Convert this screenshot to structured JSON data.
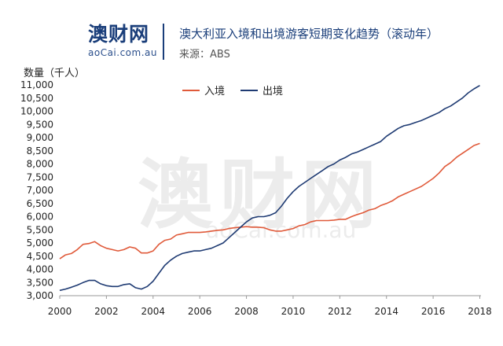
{
  "header": {
    "logo_main": "澳财网",
    "logo_domain": "aoCai.com.au",
    "title": "澳大利亚入境和出境游客短期变化趋势（滚动年）",
    "source": "来源：ABS"
  },
  "watermark": {
    "main": "澳财网",
    "domain": "aoCai.com.au"
  },
  "colors": {
    "arrivals": "#e05a3a",
    "departures": "#1f3b73",
    "brand": "#1a3e7a",
    "accent": "#e44a2e"
  },
  "chart_data": {
    "type": "line",
    "title": "澳大利亚入境和出境游客短期变化趋势（滚动年）",
    "xlabel": "",
    "ylabel": "数量（千人）",
    "xlim": [
      2000,
      2018.05
    ],
    "ylim": [
      3000,
      11000
    ],
    "x_ticks": [
      "2000",
      "2002",
      "2004",
      "2006",
      "2008",
      "2010",
      "2012",
      "2014",
      "2016",
      "2018"
    ],
    "y_ticks": [
      "3,000",
      "3,500",
      "4,000",
      "4,500",
      "5,000",
      "5,500",
      "6,000",
      "6,500",
      "7,000",
      "7,500",
      "8,000",
      "8,500",
      "9,000",
      "9,500",
      "10,000",
      "10,500",
      "11,000"
    ],
    "y_tick_values": [
      3000,
      3500,
      4000,
      4500,
      5000,
      5500,
      6000,
      6500,
      7000,
      7500,
      8000,
      8500,
      9000,
      9500,
      10000,
      10500,
      11000
    ],
    "legend_position": "top-center",
    "grid": false,
    "series": [
      {
        "name": "入境",
        "x": [
          2000.0,
          2000.25,
          2000.5,
          2000.75,
          2001.0,
          2001.25,
          2001.5,
          2001.75,
          2002.0,
          2002.25,
          2002.5,
          2002.75,
          2003.0,
          2003.25,
          2003.5,
          2003.75,
          2004.0,
          2004.25,
          2004.5,
          2004.75,
          2005.0,
          2005.25,
          2005.5,
          2005.75,
          2006.0,
          2006.25,
          2006.5,
          2006.75,
          2007.0,
          2007.25,
          2007.5,
          2007.75,
          2008.0,
          2008.25,
          2008.5,
          2008.75,
          2009.0,
          2009.25,
          2009.5,
          2009.75,
          2010.0,
          2010.25,
          2010.5,
          2010.75,
          2011.0,
          2011.25,
          2011.5,
          2011.75,
          2012.0,
          2012.25,
          2012.5,
          2012.75,
          2013.0,
          2013.25,
          2013.5,
          2013.75,
          2014.0,
          2014.25,
          2014.5,
          2014.75,
          2015.0,
          2015.25,
          2015.5,
          2015.75,
          2016.0,
          2016.25,
          2016.5,
          2016.75,
          2017.0,
          2017.25,
          2017.5,
          2017.75,
          2018.0
        ],
        "values": [
          4400,
          4550,
          4600,
          4750,
          4950,
          4980,
          5050,
          4900,
          4800,
          4750,
          4700,
          4750,
          4850,
          4800,
          4620,
          4620,
          4700,
          4950,
          5100,
          5150,
          5300,
          5350,
          5400,
          5400,
          5400,
          5420,
          5450,
          5480,
          5500,
          5550,
          5580,
          5600,
          5620,
          5600,
          5600,
          5580,
          5500,
          5450,
          5450,
          5500,
          5550,
          5650,
          5700,
          5800,
          5850,
          5850,
          5850,
          5870,
          5900,
          5900,
          6000,
          6080,
          6150,
          6250,
          6300,
          6420,
          6500,
          6600,
          6750,
          6850,
          6950,
          7050,
          7150,
          7300,
          7450,
          7650,
          7900,
          8050,
          8250,
          8400,
          8550,
          8700,
          8780
        ]
      },
      {
        "name": "出境",
        "x": [
          2000.0,
          2000.25,
          2000.5,
          2000.75,
          2001.0,
          2001.25,
          2001.5,
          2001.75,
          2002.0,
          2002.25,
          2002.5,
          2002.75,
          2003.0,
          2003.25,
          2003.5,
          2003.75,
          2004.0,
          2004.25,
          2004.5,
          2004.75,
          2005.0,
          2005.25,
          2005.5,
          2005.75,
          2006.0,
          2006.25,
          2006.5,
          2006.75,
          2007.0,
          2007.25,
          2007.5,
          2007.75,
          2008.0,
          2008.25,
          2008.5,
          2008.75,
          2009.0,
          2009.25,
          2009.5,
          2009.75,
          2010.0,
          2010.25,
          2010.5,
          2010.75,
          2011.0,
          2011.25,
          2011.5,
          2011.75,
          2012.0,
          2012.25,
          2012.5,
          2012.75,
          2013.0,
          2013.25,
          2013.5,
          2013.75,
          2014.0,
          2014.25,
          2014.5,
          2014.75,
          2015.0,
          2015.25,
          2015.5,
          2015.75,
          2016.0,
          2016.25,
          2016.5,
          2016.75,
          2017.0,
          2017.25,
          2017.5,
          2017.75,
          2018.0
        ],
        "values": [
          3200,
          3250,
          3320,
          3400,
          3500,
          3580,
          3580,
          3450,
          3380,
          3350,
          3350,
          3420,
          3450,
          3300,
          3250,
          3350,
          3550,
          3850,
          4150,
          4350,
          4500,
          4600,
          4650,
          4700,
          4700,
          4750,
          4800,
          4900,
          5000,
          5200,
          5400,
          5600,
          5800,
          5950,
          6000,
          6000,
          6050,
          6150,
          6400,
          6700,
          6950,
          7150,
          7300,
          7450,
          7600,
          7750,
          7900,
          8000,
          8150,
          8250,
          8380,
          8450,
          8550,
          8650,
          8750,
          8850,
          9050,
          9200,
          9350,
          9450,
          9500,
          9580,
          9650,
          9750,
          9850,
          9950,
          10100,
          10200,
          10350,
          10500,
          10700,
          10850,
          10980
        ]
      }
    ]
  }
}
